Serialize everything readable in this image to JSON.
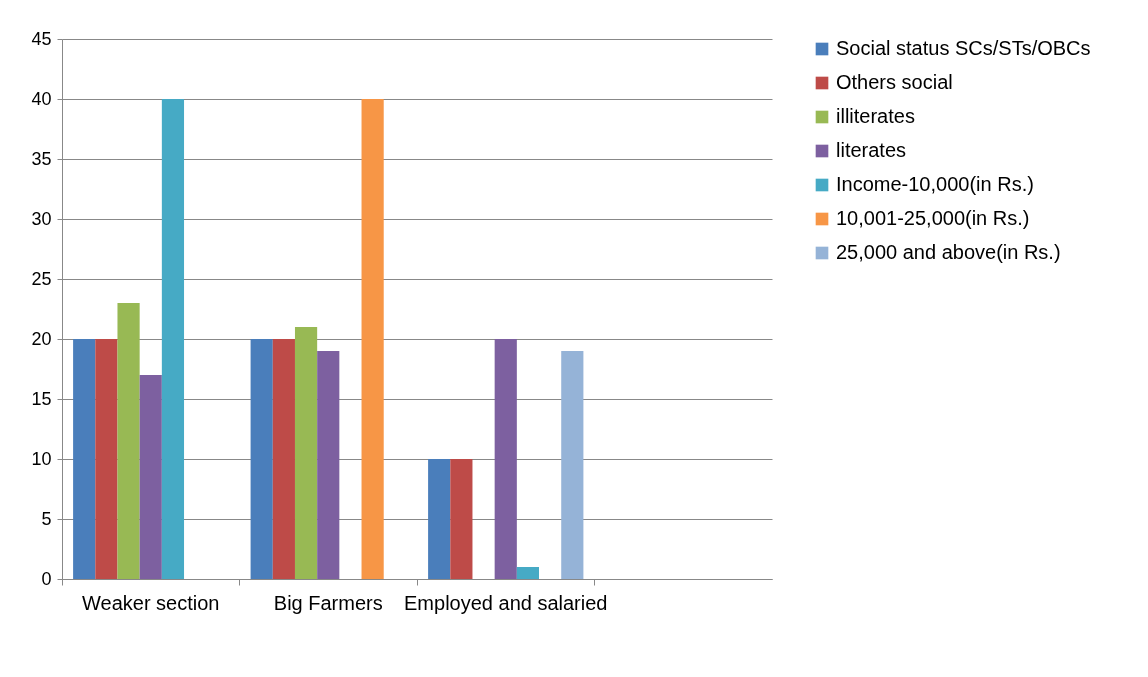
{
  "chart_data": {
    "type": "bar",
    "categories": [
      "Weaker section",
      "Big Farmers",
      "Employed and salaried",
      null
    ],
    "series": [
      {
        "name": "Social status SCs/STs/OBCs",
        "color": "#4a7ebb",
        "values": [
          20,
          20,
          10,
          null
        ]
      },
      {
        "name": "Others social",
        "color": "#be4b48",
        "values": [
          20,
          20,
          10,
          null
        ]
      },
      {
        "name": "illiterates",
        "color": "#98b954",
        "values": [
          23,
          21,
          null,
          null
        ]
      },
      {
        "name": "literates",
        "color": "#7d60a0",
        "values": [
          17,
          19,
          20,
          null
        ]
      },
      {
        "name": "Income-10,000(in Rs.)",
        "color": "#46aac5",
        "values": [
          40,
          null,
          1,
          null
        ]
      },
      {
        "name": "10,001-25,000(in Rs.)",
        "color": "#f79646",
        "values": [
          null,
          40,
          null,
          null
        ]
      },
      {
        "name": "25,000 and above(in Rs.)",
        "color": "#95b3d7",
        "values": [
          null,
          null,
          19,
          null
        ]
      }
    ],
    "ylim": [
      0,
      45
    ],
    "yticks": [
      0,
      5,
      10,
      15,
      20,
      25,
      30,
      35,
      40,
      45
    ],
    "grid": "y",
    "legend": "right"
  }
}
